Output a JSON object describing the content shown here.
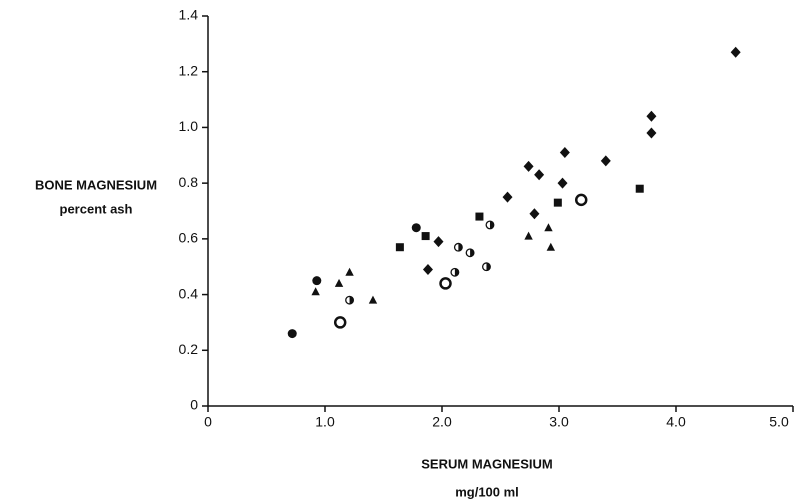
{
  "chart_data": {
    "type": "scatter",
    "y_label": "BONE MAGNESIUM",
    "y_label_sub": "percent ash",
    "x_label": "SERUM MAGNESIUM",
    "x_label_sub": "mg/100 ml",
    "xlim": [
      0,
      5
    ],
    "ylim": [
      0,
      1.4
    ],
    "xticks": [
      0,
      {
        "value": 1,
        "label": "1.0"
      },
      {
        "value": 2,
        "label": "2.0"
      },
      {
        "value": 3,
        "label": "3.0"
      },
      {
        "value": 4,
        "label": "4.0"
      },
      {
        "value": 5,
        "label": "5.0"
      }
    ],
    "yticks": [
      0,
      0.2,
      0.4,
      0.6,
      0.8,
      {
        "value": 1,
        "label": "1.0"
      },
      1.2,
      1.4
    ],
    "color": "#111111",
    "series": [
      {
        "marker": "circle",
        "x": [
          0.72,
          0.93,
          1.78
        ],
        "values": [
          0.26,
          0.45,
          0.64
        ]
      },
      {
        "marker": "triangle",
        "x": [
          0.92,
          1.12,
          1.21,
          1.41,
          2.74,
          2.91,
          2.93
        ],
        "values": [
          0.41,
          0.44,
          0.48,
          0.38,
          0.61,
          0.64,
          0.57
        ]
      },
      {
        "marker": "half-circle",
        "x": [
          1.21,
          2.14,
          2.11,
          2.24,
          2.38,
          2.41
        ],
        "values": [
          0.38,
          0.57,
          0.48,
          0.55,
          0.5,
          0.65
        ]
      },
      {
        "marker": "square",
        "x": [
          1.64,
          1.86,
          2.32,
          2.99,
          3.69
        ],
        "values": [
          0.57,
          0.61,
          0.68,
          0.73,
          0.78
        ]
      },
      {
        "marker": "diamond",
        "x": [
          1.88,
          1.97,
          2.56,
          2.74,
          2.83,
          2.79,
          3.03,
          3.05,
          3.4,
          3.79,
          3.79,
          4.51
        ],
        "values": [
          0.49,
          0.59,
          0.75,
          0.86,
          0.83,
          0.69,
          0.8,
          0.91,
          0.88,
          0.98,
          1.04,
          1.27
        ]
      },
      {
        "marker": "open-circle",
        "x": [
          1.13,
          2.03,
          3.19
        ],
        "values": [
          0.3,
          0.44,
          0.74
        ]
      }
    ]
  }
}
